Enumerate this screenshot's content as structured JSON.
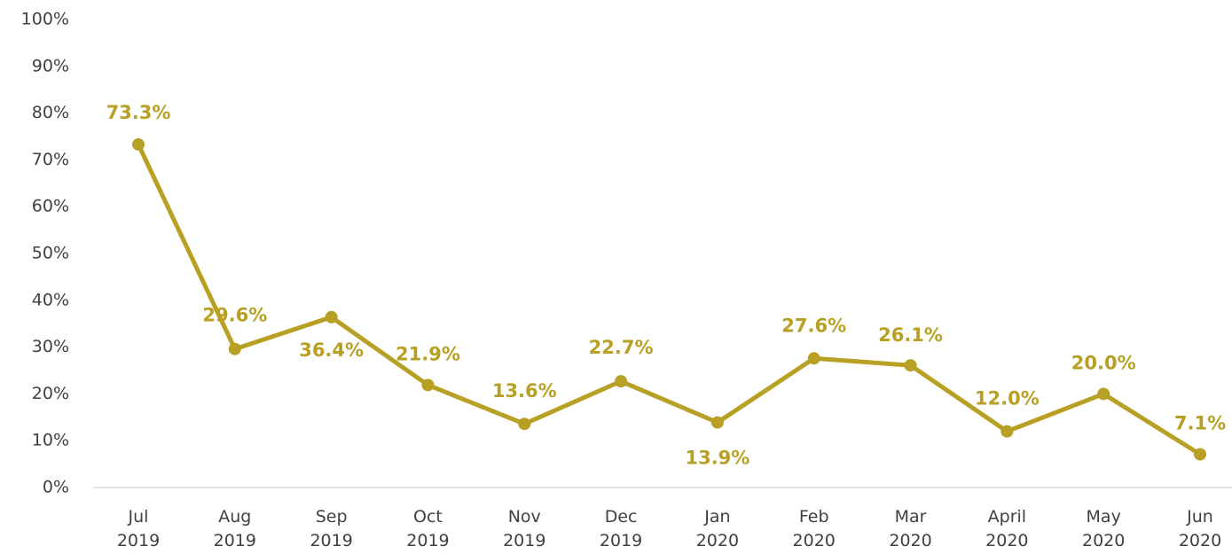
{
  "chart_data": {
    "type": "line",
    "categories": [
      [
        "Jul",
        "2019"
      ],
      [
        "Aug",
        "2019"
      ],
      [
        "Sep",
        "2019"
      ],
      [
        "Oct",
        "2019"
      ],
      [
        "Nov",
        "2019"
      ],
      [
        "Dec",
        "2019"
      ],
      [
        "Jan",
        "2020"
      ],
      [
        "Feb",
        "2020"
      ],
      [
        "Mar",
        "2020"
      ],
      [
        "April",
        "2020"
      ],
      [
        "May",
        "2020"
      ],
      [
        "Jun",
        "2020"
      ]
    ],
    "series": [
      {
        "color": "#b8a024",
        "values": [
          73.3,
          29.6,
          36.4,
          21.9,
          13.6,
          22.7,
          13.9,
          27.6,
          26.1,
          12.0,
          20.0,
          7.1
        ],
        "value_labels": [
          "73.3%",
          "29.6%",
          "36.4%",
          "21.9%",
          "13.6%",
          "22.7%",
          "13.9%",
          "27.6%",
          "26.1%",
          "12.0%",
          "20.0%",
          "7.1%"
        ]
      }
    ],
    "ylim": [
      0,
      100
    ],
    "yticks": [
      {
        "value": 0,
        "label": "0%"
      },
      {
        "value": 10,
        "label": "10%"
      },
      {
        "value": 20,
        "label": "20%"
      },
      {
        "value": 30,
        "label": "30%"
      },
      {
        "value": 40,
        "label": "40%"
      },
      {
        "value": 50,
        "label": "50%"
      },
      {
        "value": 60,
        "label": "60%"
      },
      {
        "value": 70,
        "label": "70%"
      },
      {
        "value": 80,
        "label": "80%"
      },
      {
        "value": 90,
        "label": "90%"
      },
      {
        "value": 100,
        "label": "100%"
      }
    ],
    "grid": false
  }
}
